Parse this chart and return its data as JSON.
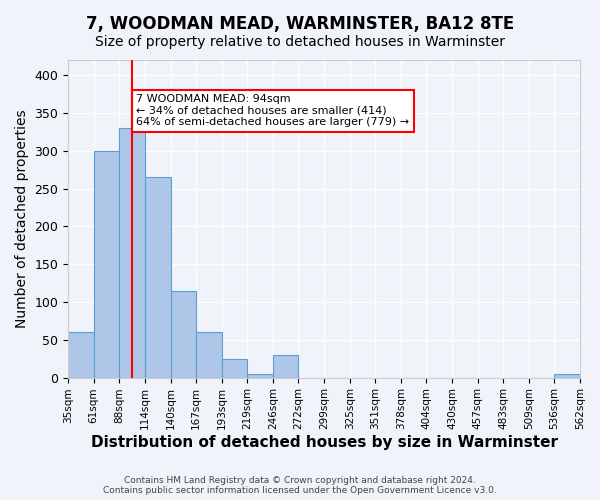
{
  "title": "7, WOODMAN MEAD, WARMINSTER, BA12 8TE",
  "subtitle": "Size of property relative to detached houses in Warminster",
  "xlabel": "Distribution of detached houses by size in Warminster",
  "ylabel": "Number of detached properties",
  "footer_line1": "Contains HM Land Registry data © Crown copyright and database right 2024.",
  "footer_line2": "Contains public sector information licensed under the Open Government Licence v3.0.",
  "bin_labels": [
    "35sqm",
    "61sqm",
    "88sqm",
    "114sqm",
    "140sqm",
    "167sqm",
    "193sqm",
    "219sqm",
    "246sqm",
    "272sqm",
    "299sqm",
    "325sqm",
    "351sqm",
    "378sqm",
    "404sqm",
    "430sqm",
    "457sqm",
    "483sqm",
    "509sqm",
    "536sqm",
    "562sqm"
  ],
  "bar_values": [
    60,
    300,
    330,
    265,
    115,
    60,
    25,
    5,
    30,
    0,
    0,
    0,
    0,
    0,
    0,
    0,
    0,
    0,
    0,
    5
  ],
  "bar_color": "#aec6e8",
  "bar_edgecolor": "#5a9fd4",
  "red_line_x": 2,
  "annotation_text": "7 WOODMAN MEAD: 94sqm\n← 34% of detached houses are smaller (414)\n64% of semi-detached houses are larger (779) →",
  "annotation_box_color": "white",
  "annotation_box_edgecolor": "red",
  "ylim": [
    0,
    420
  ],
  "yticks": [
    0,
    50,
    100,
    150,
    200,
    250,
    300,
    350,
    400
  ],
  "background_color": "#f0f4fa",
  "grid_color": "white",
  "title_fontsize": 12,
  "subtitle_fontsize": 10,
  "xlabel_fontsize": 11,
  "ylabel_fontsize": 10
}
